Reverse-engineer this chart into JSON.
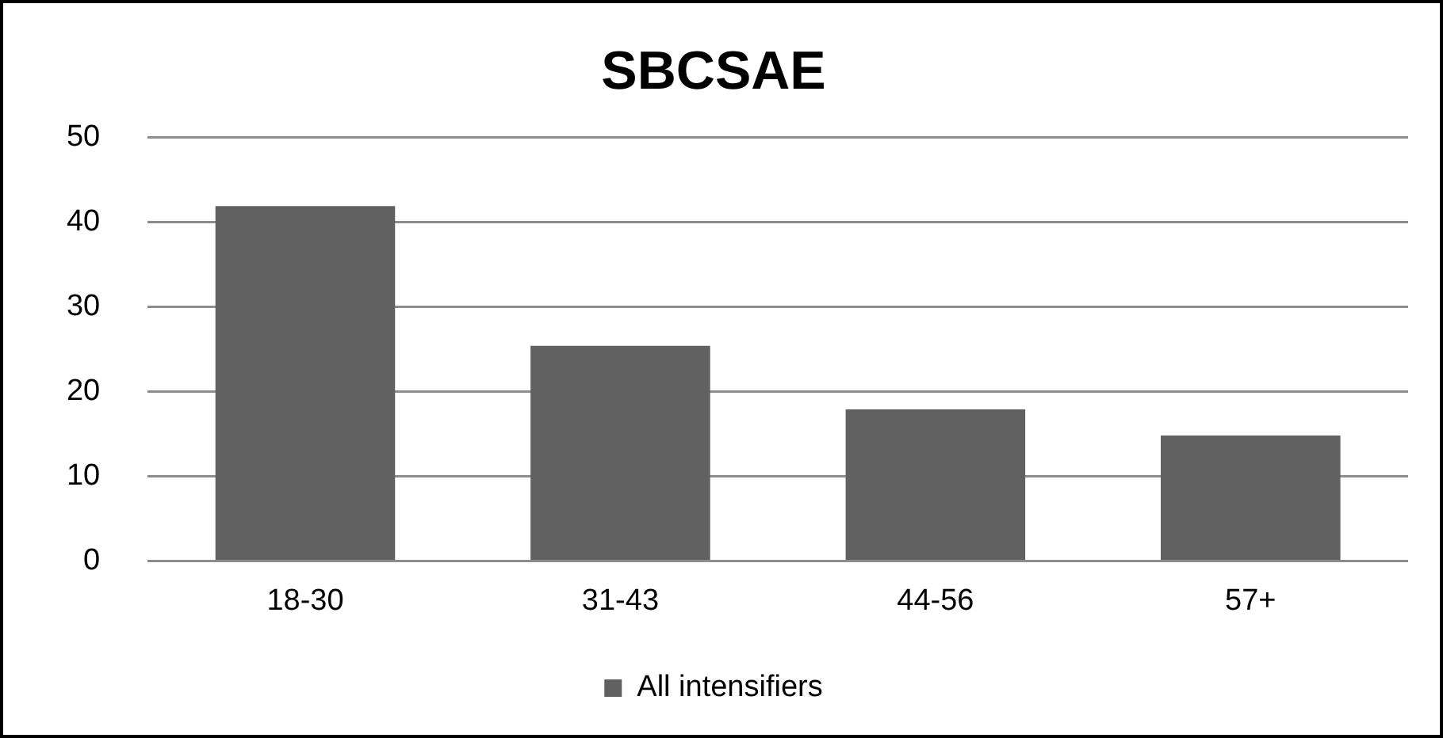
{
  "chart_data": {
    "type": "bar",
    "title": "SBCSAE",
    "categories": [
      "18-30",
      "31-43",
      "44-56",
      "57+"
    ],
    "series": [
      {
        "name": "All intensifiers",
        "color": "#616161",
        "values": [
          41.9,
          25.4,
          17.9,
          14.8
        ]
      }
    ],
    "ylim": [
      0,
      50
    ],
    "yticks": [
      0,
      10,
      20,
      30,
      40,
      50
    ],
    "grid": "y",
    "legend": "bottom"
  }
}
